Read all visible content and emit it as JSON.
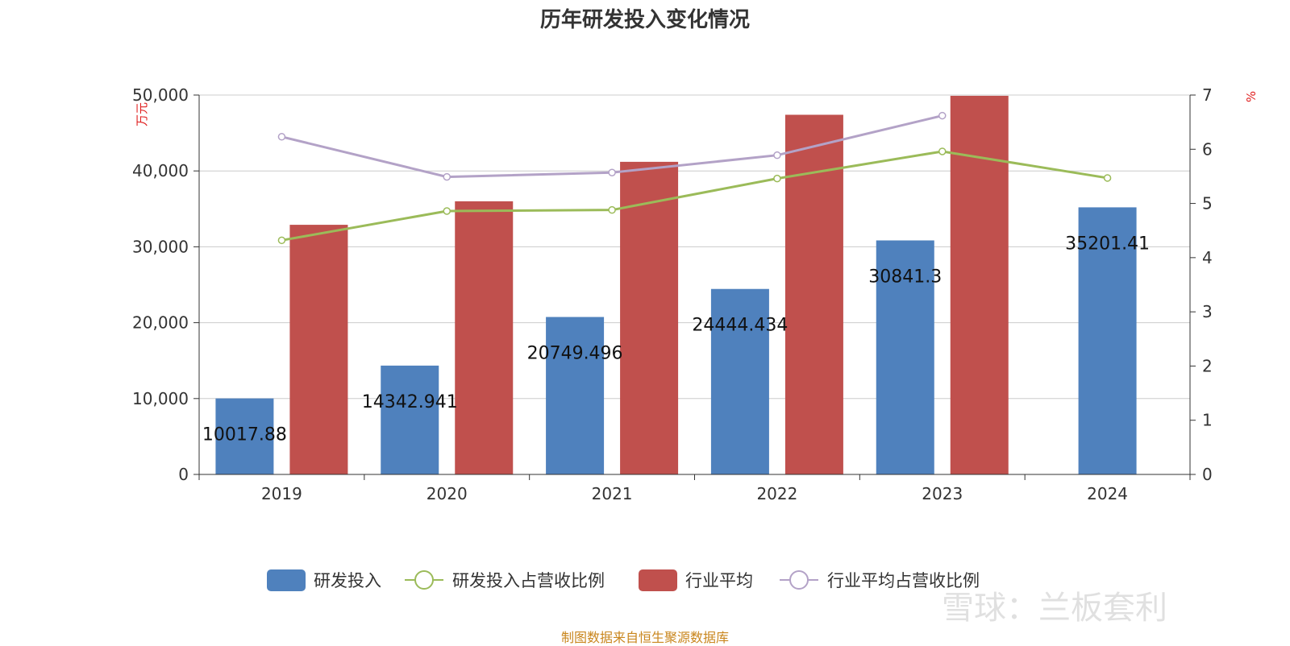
{
  "title": "历年研发投入变化情况",
  "footer": "制图数据来自恒生聚源数据库",
  "watermark": "雪球：兰板套利",
  "chart_data": {
    "type": "bar",
    "title": "历年研发投入变化情况",
    "categories": [
      "2019",
      "2020",
      "2021",
      "2022",
      "2023",
      "2024"
    ],
    "y_left": {
      "label": "万元",
      "min": 0,
      "max": 50000,
      "ticks": [
        0,
        10000,
        20000,
        30000,
        40000,
        50000
      ],
      "tick_labels": [
        "0",
        "10,000",
        "20,000",
        "30,000",
        "40,000",
        "50,000"
      ]
    },
    "y_right": {
      "label": "%",
      "min": 0,
      "max": 7,
      "ticks": [
        0,
        1,
        2,
        3,
        4,
        5,
        6,
        7
      ],
      "tick_labels": [
        "0",
        "1",
        "2",
        "3",
        "4",
        "5",
        "6",
        "7"
      ]
    },
    "grid": true,
    "legend_position": "bottom",
    "series": [
      {
        "name": "研发投入",
        "kind": "bar",
        "axis": "left",
        "color": "#4f81bd",
        "values": [
          10017.88,
          14342.941,
          20749.496,
          24444.434,
          30841.3,
          35201.41
        ],
        "labels": [
          "10017.88",
          "14342.941",
          "20749.496",
          "24444.434",
          "30841.3",
          "35201.41"
        ]
      },
      {
        "name": "研发投入占营收比例",
        "kind": "line",
        "axis": "right",
        "color": "#9bbb59",
        "values": [
          4.32,
          4.86,
          4.88,
          5.46,
          5.96,
          5.47
        ]
      },
      {
        "name": "行业平均",
        "kind": "bar",
        "axis": "left",
        "color": "#c0504d",
        "values": [
          32900,
          36000,
          41200,
          47400,
          49900,
          null
        ]
      },
      {
        "name": "行业平均占营收比例",
        "kind": "line",
        "axis": "right",
        "color": "#b3a2c7",
        "values": [
          6.23,
          5.49,
          5.57,
          5.89,
          6.62,
          null
        ]
      }
    ]
  }
}
